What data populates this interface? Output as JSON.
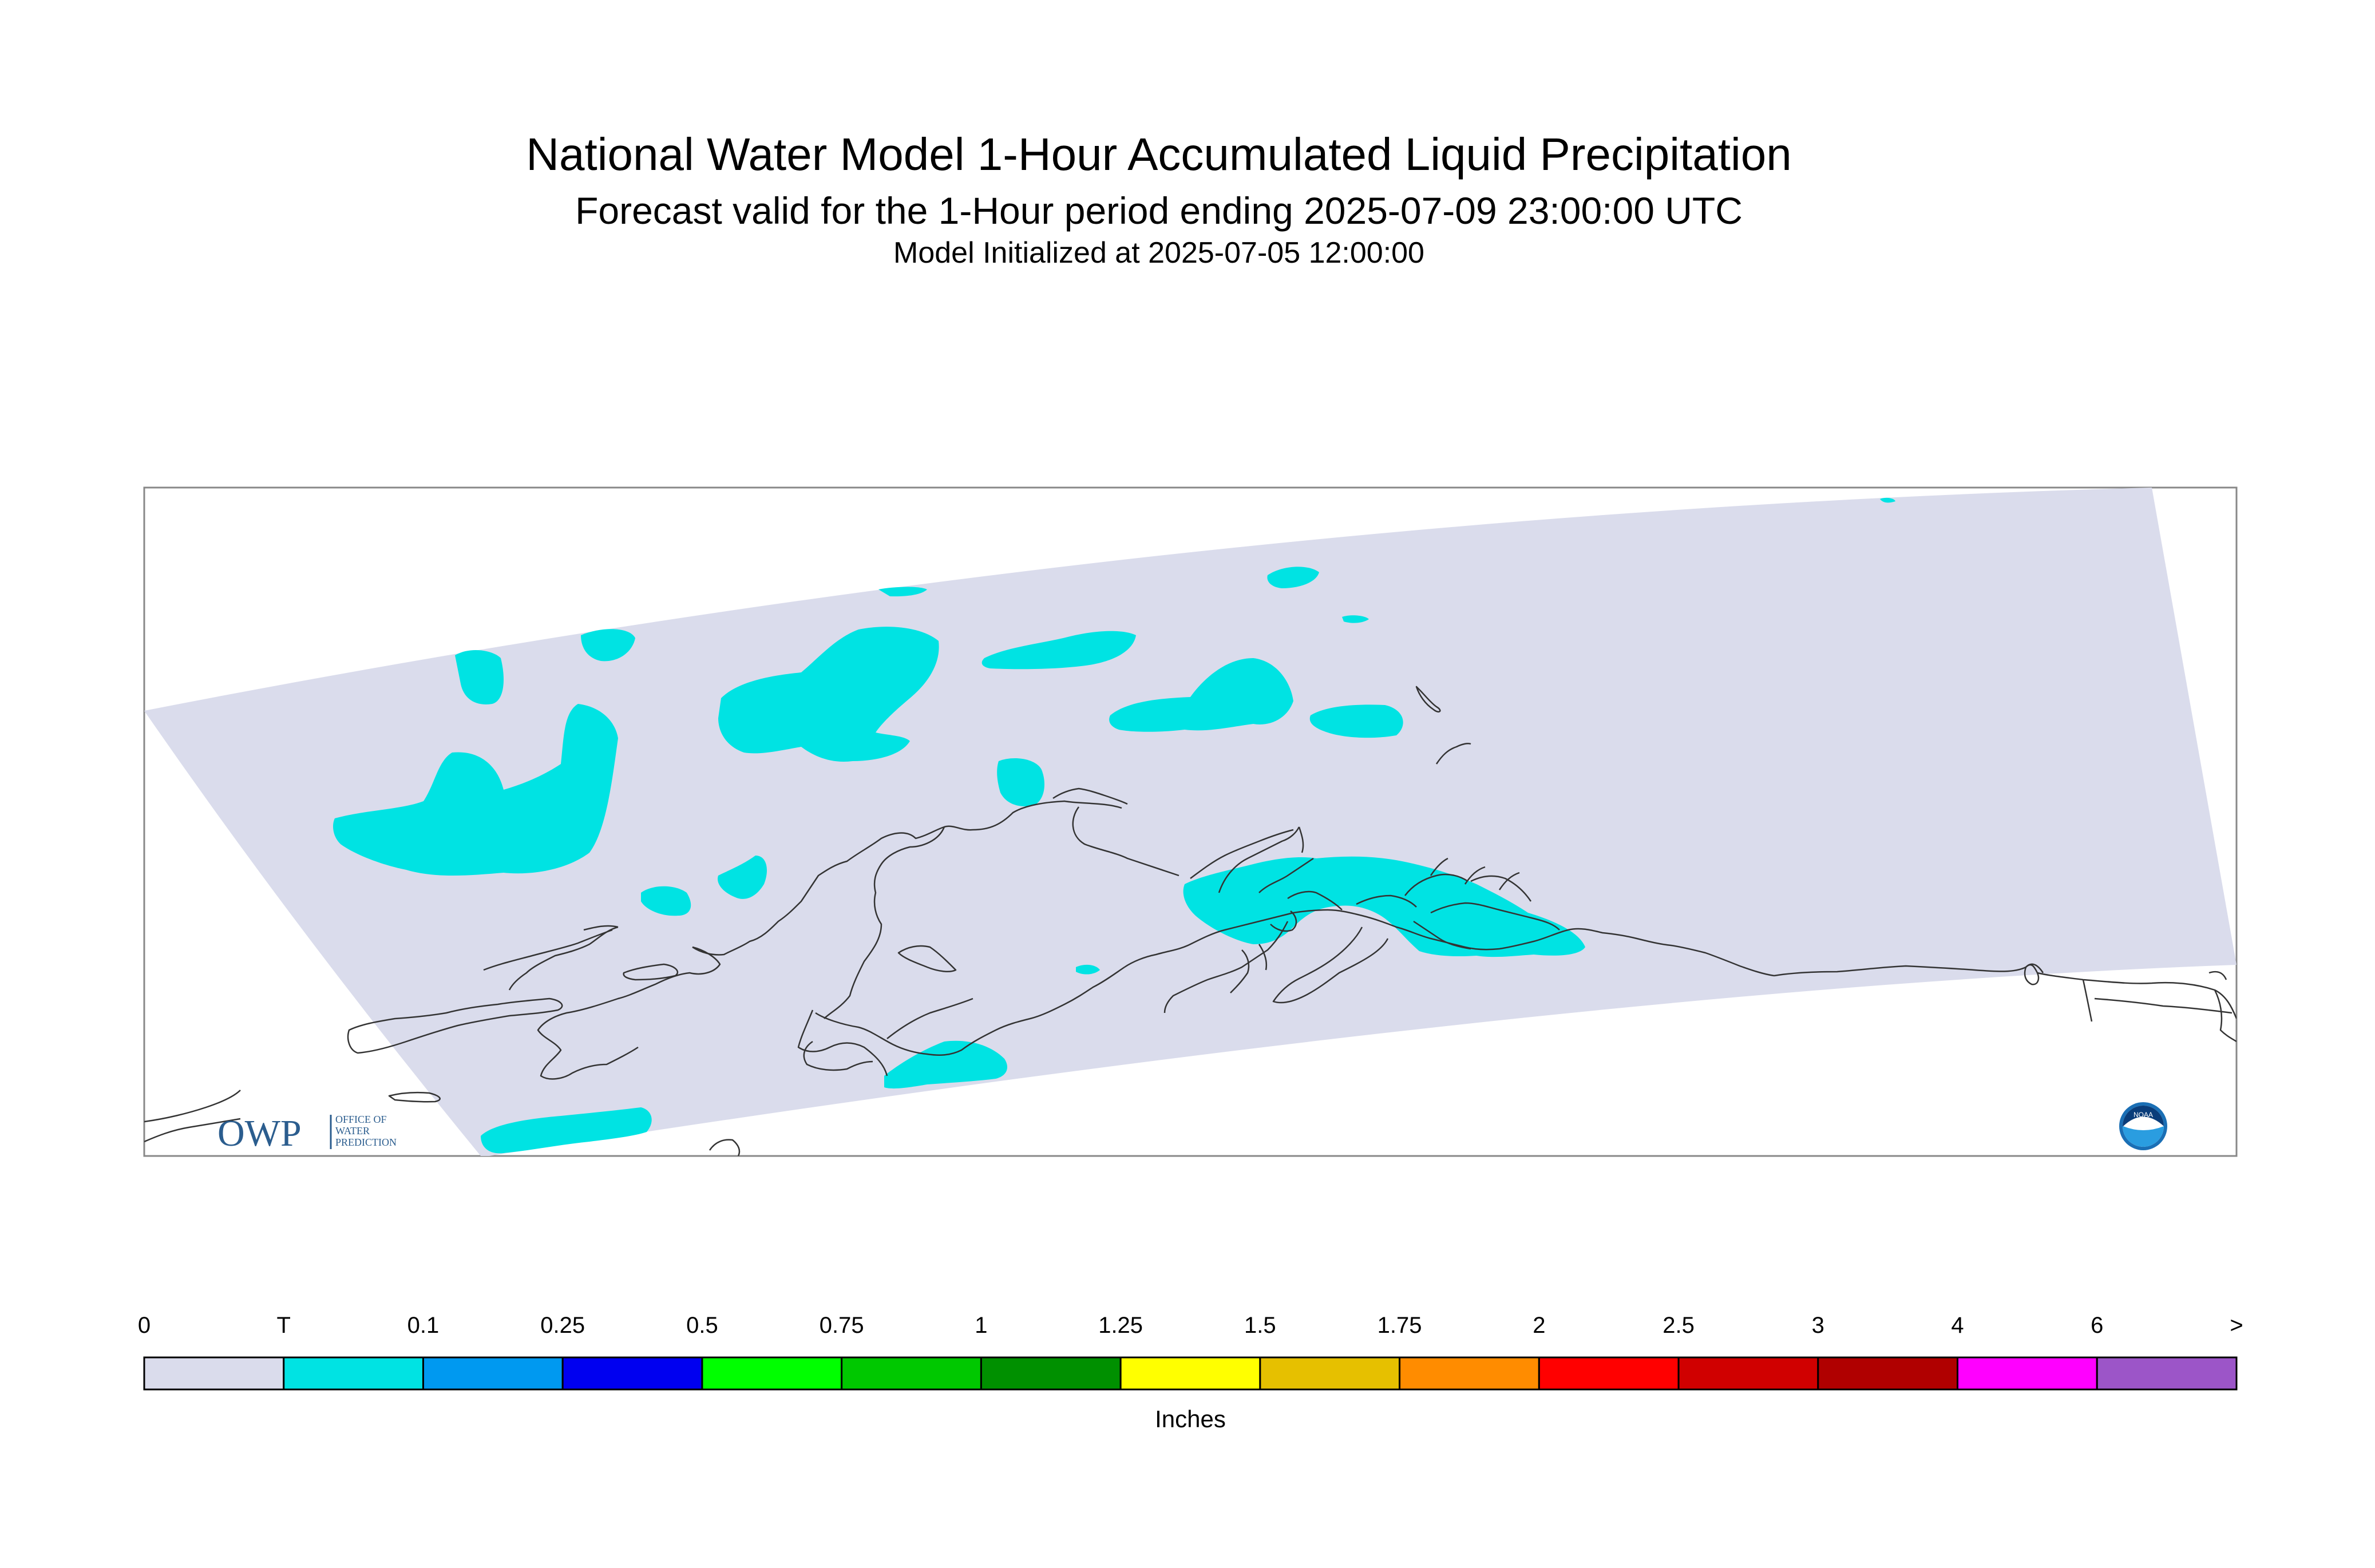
{
  "header": {
    "title": "National Water Model 1-Hour Accumulated Liquid Precipitation",
    "subtitle": "Forecast valid for the 1-Hour period ending 2025-07-09 23:00:00 UTC",
    "init": "Model Initialized at 2025-07-05 12:00:00"
  },
  "logos": {
    "owp_text": "OWP",
    "owp_sub": [
      "OFFICE OF",
      "WATER",
      "PREDICTION"
    ],
    "noaa_text": "NOAA"
  },
  "legend": {
    "units": "Inches",
    "labels": [
      "0",
      "T",
      "0.1",
      "0.25",
      "0.5",
      "0.75",
      "1",
      "1.25",
      "1.5",
      "1.75",
      "2",
      "2.5",
      "3",
      "4",
      "6",
      ">"
    ],
    "colors": [
      "#dadcec",
      "#00e3e3",
      "#0099f0",
      "#0000f0",
      "#00ff00",
      "#00c800",
      "#009000",
      "#ffff00",
      "#e6c000",
      "#ff8c00",
      "#ff0000",
      "#d00000",
      "#b00000",
      "#ff00ff",
      "#9c55c8"
    ]
  },
  "colors": {
    "domain_fill": "#dadcec",
    "trace_fill": "#00e3e3",
    "coastline": "#333333"
  }
}
